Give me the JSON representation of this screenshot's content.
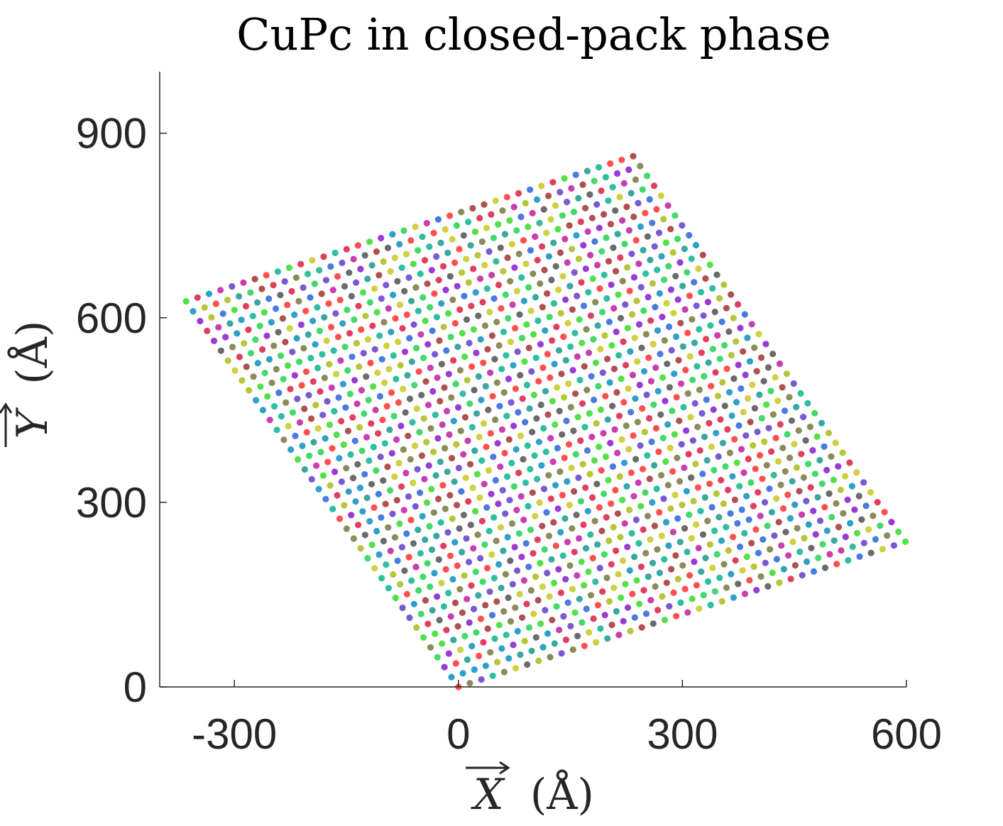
{
  "chart_data": {
    "type": "scatter",
    "title": "CuPc in closed-pack phase",
    "xlabel": "X (Å)",
    "ylabel": "Y (Å)",
    "x_symbol": "X",
    "y_symbol": "Y",
    "unit": "(Å)",
    "xlim": [
      -400,
      600
    ],
    "ylim": [
      0,
      1000
    ],
    "xticks": [
      -300,
      0,
      300,
      600
    ],
    "yticks": [
      0,
      300,
      600,
      900
    ],
    "xtick_labels": [
      "-300",
      "0",
      "300",
      "600"
    ],
    "ytick_labels": [
      "0",
      "300",
      "600",
      "900"
    ],
    "grid": false,
    "legend": "none",
    "lattice": {
      "origin": [
        0,
        0
      ],
      "vector_a": [
        15.35,
        6.05
      ],
      "vector_b": [
        -9.35,
        16.07
      ],
      "count_a": 40,
      "count_b": 40
    },
    "colors": [
      "#ff5050",
      "#3aa7a0",
      "#6b6b6b",
      "#44d96a",
      "#9a3bd6",
      "#b8c53a",
      "#e0405f",
      "#4a7be0",
      "#55e04a",
      "#c83fb0",
      "#2fbfa0",
      "#8c8c5a",
      "#7a5ad0",
      "#d0d042",
      "#30a0c8",
      "#b05050"
    ]
  }
}
